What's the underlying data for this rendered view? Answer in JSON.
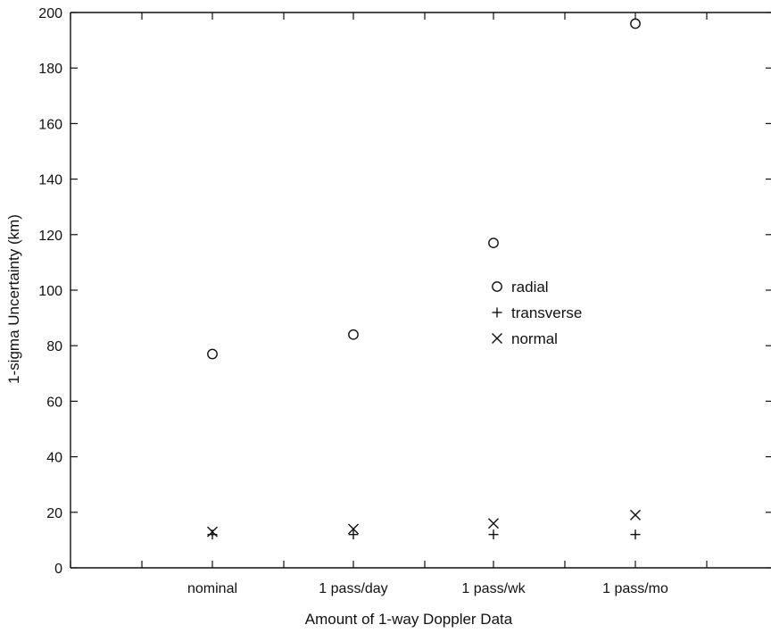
{
  "chart_data": {
    "type": "scatter",
    "title": "",
    "xlabel": "Amount of 1-way Doppler Data",
    "ylabel": "1-sigma Uncertainty (km)",
    "categories": [
      "nominal",
      "1 pass/day",
      "1 pass/wk",
      "1 pass/mo"
    ],
    "ylim": [
      0,
      200
    ],
    "yticks": [
      0,
      20,
      40,
      60,
      80,
      100,
      120,
      140,
      160,
      180,
      200
    ],
    "grid": false,
    "legend_position": "center-right",
    "series": [
      {
        "name": "radial",
        "marker": "o",
        "values": [
          77,
          84,
          117,
          196
        ]
      },
      {
        "name": "transverse",
        "marker": "+",
        "values": [
          12,
          12,
          12,
          12
        ]
      },
      {
        "name": "normal",
        "marker": "x",
        "values": [
          13,
          14,
          16,
          19
        ]
      }
    ],
    "legend_marker_glyphs": {
      "o": "o",
      "+": "+",
      "x": "x"
    }
  }
}
